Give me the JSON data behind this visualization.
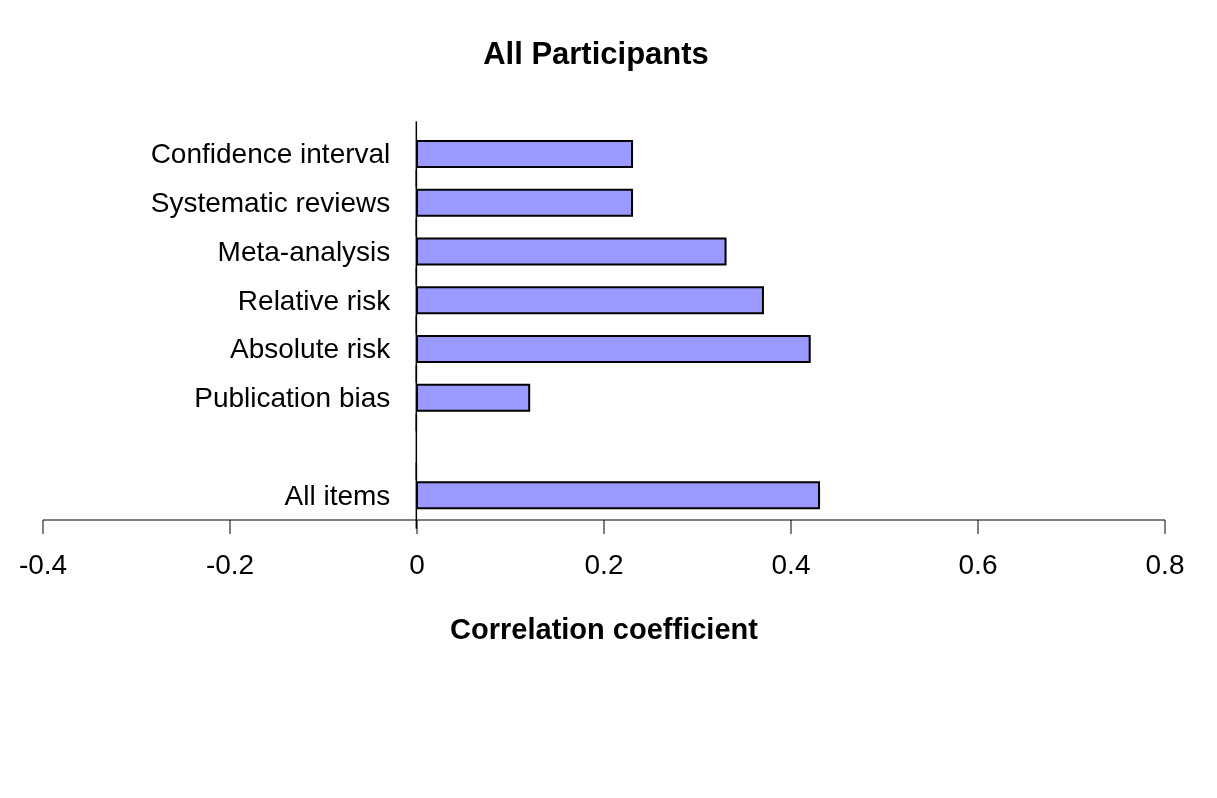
{
  "chart_data": {
    "type": "bar",
    "orientation": "horizontal",
    "title": "All Participants",
    "xlabel": "Correlation coefficient",
    "categories": [
      "Confidence interval",
      "Systematic reviews",
      "Meta-analysis",
      "Relative risk",
      "Absolute risk",
      "Publication bias",
      null,
      "All items"
    ],
    "values": [
      0.23,
      0.23,
      0.33,
      0.37,
      0.42,
      0.12,
      null,
      0.43
    ],
    "color": "#9999ff",
    "xlim": [
      -0.4,
      0.8
    ],
    "xticks": [
      -0.4,
      -0.2,
      0,
      0.2,
      0.4,
      0.6,
      0.8
    ],
    "grid": false,
    "legend": false
  }
}
